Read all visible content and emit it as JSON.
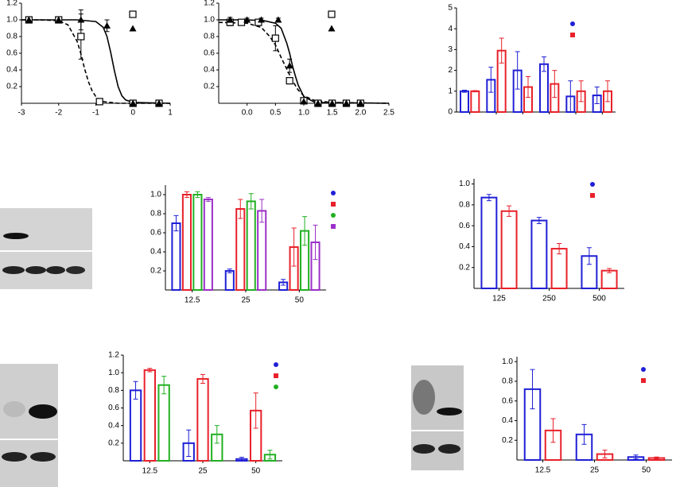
{
  "chart_data": [
    {
      "type": "dose",
      "xlim": [
        -3,
        1
      ],
      "xticks": [
        -3,
        -2,
        -1,
        0,
        1
      ],
      "ylim": [
        0,
        1.2
      ],
      "yticks": [
        0.2,
        0.4,
        0.6,
        0.8,
        {
          "value": 1,
          "label": "1.0"
        },
        1.2
      ],
      "series": [
        {
          "marker": "square",
          "color": "#000000",
          "x": [
            -2.8,
            -2,
            -1.4,
            -0.9,
            0,
            0.7
          ],
          "values": [
            1,
            1,
            0.8,
            0.02,
            0,
            0
          ],
          "errors": [
            0,
            0,
            0.27,
            0,
            0,
            0
          ]
        },
        {
          "marker": "triangle",
          "color": "#000000",
          "x": [
            -2.8,
            -2,
            -1.4,
            -0.7,
            0,
            0.7
          ],
          "values": [
            1,
            1,
            1,
            0.93,
            0,
            0
          ],
          "errors": [
            0,
            0,
            0.12,
            0.07,
            0,
            0
          ]
        }
      ],
      "fits": [
        {
          "dash": true,
          "x": [
            -3,
            -2.5,
            -2,
            -1.75,
            -1.5,
            -1.4,
            -1.3,
            -1.2,
            -1.1,
            -1,
            -0.9,
            -0.8,
            -0.6,
            -0.4,
            0,
            1
          ],
          "values": [
            1,
            1,
            0.99,
            0.94,
            0.74,
            0.59,
            0.41,
            0.26,
            0.15,
            0.08,
            0.04,
            0.02,
            0.01,
            0,
            0,
            0
          ]
        },
        {
          "dash": false,
          "x": [
            -3,
            -1.5,
            -1,
            -0.8,
            -0.7,
            -0.6,
            -0.5,
            -0.4,
            -0.3,
            -0.2,
            0,
            1
          ],
          "values": [
            1,
            1,
            0.98,
            0.91,
            0.8,
            0.61,
            0.39,
            0.2,
            0.09,
            0.04,
            0.01,
            0
          ]
        }
      ]
    },
    {
      "type": "dose",
      "xlim": [
        -0.5,
        2.5
      ],
      "xticks": [
        {
          "value": 0,
          "label": "0.0"
        },
        0.5,
        {
          "value": 1,
          "label": "1.0"
        },
        1.5,
        {
          "value": 2,
          "label": "2.0"
        },
        2.5
      ],
      "ylim": [
        0,
        1.2
      ],
      "yticks": [
        0.2,
        0.4,
        0.6,
        0.8,
        {
          "value": 1,
          "label": "1.0"
        },
        1.2
      ],
      "series": [
        {
          "marker": "square",
          "color": "#000000",
          "x": [
            -0.3,
            -0.1,
            0.2,
            0.5,
            0.75,
            1,
            1.25,
            1.5,
            1.75,
            2
          ],
          "values": [
            0.97,
            0.97,
            0.97,
            0.78,
            0.27,
            0.03,
            0,
            0,
            0,
            0
          ],
          "errors": [
            0.04,
            0.03,
            0.03,
            0.15,
            0.03,
            0,
            0,
            0,
            0,
            0
          ]
        },
        {
          "marker": "triangle",
          "color": "#000000",
          "x": [
            -0.3,
            0,
            0.25,
            0.55,
            0.75,
            1,
            1.25,
            1.5,
            1.75,
            2
          ],
          "values": [
            1,
            1,
            1,
            1,
            0.45,
            0.02,
            0,
            0,
            0,
            0
          ],
          "errors": [
            0.03,
            0.02,
            0.02,
            0.02,
            0.08,
            0,
            0,
            0,
            0,
            0
          ]
        }
      ],
      "fits": [
        {
          "dash": true,
          "x": [
            -0.5,
            0,
            0.25,
            0.4,
            0.5,
            0.6,
            0.7,
            0.8,
            0.9,
            1,
            1.2,
            1.5,
            2.5
          ],
          "values": [
            0.97,
            0.96,
            0.91,
            0.8,
            0.7,
            0.55,
            0.41,
            0.27,
            0.16,
            0.09,
            0.03,
            0.01,
            0
          ]
        },
        {
          "dash": false,
          "x": [
            -0.5,
            0,
            0.3,
            0.5,
            0.6,
            0.7,
            0.75,
            0.8,
            0.85,
            0.9,
            1,
            1.2,
            2.5
          ],
          "values": [
            1,
            1,
            0.99,
            0.96,
            0.9,
            0.72,
            0.6,
            0.45,
            0.33,
            0.22,
            0.08,
            0.01,
            0
          ]
        }
      ]
    },
    {
      "type": "bar",
      "categories": [
        null,
        null,
        null,
        null,
        null,
        null
      ],
      "ylim": [
        0,
        5
      ],
      "yticks": [
        0,
        1,
        2,
        3,
        4,
        5
      ],
      "series": [
        {
          "color": "#1f1fd6",
          "values": [
            1,
            1.55,
            2,
            2.3,
            0.75,
            0.8
          ],
          "errors": [
            0.05,
            0.6,
            0.9,
            0.35,
            0.75,
            0.4
          ]
        },
        {
          "color": "#e8212a",
          "values": [
            1,
            2.95,
            1.2,
            1.35,
            1,
            1
          ],
          "errors": [
            0.03,
            0.6,
            0.5,
            0.65,
            0.5,
            0.5
          ]
        }
      ]
    },
    {
      "type": "bar",
      "categories": [
        "12.5",
        "25",
        "50"
      ],
      "ylim": [
        0,
        1.1
      ],
      "yticks": [
        0.2,
        0.4,
        0.6,
        0.8,
        {
          "value": 1,
          "label": "1.0"
        }
      ],
      "series": [
        {
          "color": "#1f1fd6",
          "values": [
            0.7,
            0.2,
            0.08
          ],
          "errors": [
            0.08,
            0.02,
            0.03
          ]
        },
        {
          "color": "#e8212a",
          "values": [
            1,
            0.85,
            0.45
          ],
          "errors": [
            0.03,
            0.1,
            0.2
          ]
        },
        {
          "color": "#22b022",
          "values": [
            1,
            0.93,
            0.62
          ],
          "errors": [
            0.03,
            0.08,
            0.15
          ]
        },
        {
          "color": "#9b30c8",
          "values": [
            0.95,
            0.83,
            0.5
          ],
          "errors": [
            0.02,
            0.12,
            0.18
          ]
        }
      ]
    },
    {
      "type": "bar",
      "categories": [
        "125",
        "250",
        "500"
      ],
      "ylim": [
        0,
        1.05
      ],
      "yticks": [
        0.2,
        0.4,
        0.6,
        0.8,
        {
          "value": 1,
          "label": "1.0"
        }
      ],
      "series": [
        {
          "color": "#1f1fd6",
          "values": [
            0.87,
            0.65,
            0.31
          ],
          "errors": [
            0.03,
            0.03,
            0.08
          ]
        },
        {
          "color": "#e8212a",
          "values": [
            0.74,
            0.38,
            0.17
          ],
          "errors": [
            0.05,
            0.05,
            0.02
          ]
        }
      ]
    },
    {
      "type": "bar",
      "categories": [
        "12.5",
        "25",
        "50"
      ],
      "ylim": [
        0,
        1.2
      ],
      "yticks": [
        0.2,
        0.4,
        0.6,
        0.8,
        {
          "value": 1,
          "label": "1.0"
        },
        1.2
      ],
      "series": [
        {
          "color": "#1f1fd6",
          "values": [
            0.8,
            0.2,
            0.02
          ],
          "errors": [
            0.1,
            0.15,
            0.02
          ]
        },
        {
          "color": "#e8212a",
          "values": [
            1.03,
            0.93,
            0.57
          ],
          "errors": [
            0.02,
            0.05,
            0.2
          ]
        },
        {
          "color": "#22b022",
          "values": [
            0.86,
            0.3,
            0.07
          ],
          "errors": [
            0.1,
            0.1,
            0.05
          ]
        }
      ]
    },
    {
      "type": "bar",
      "categories": [
        "12.5",
        "25",
        "50"
      ],
      "ylim": [
        0,
        1.05
      ],
      "yticks": [
        0.2,
        0.4,
        0.6,
        0.8,
        {
          "value": 1,
          "label": "1.0"
        }
      ],
      "series": [
        {
          "color": "#1f1fd6",
          "values": [
            0.72,
            0.26,
            0.03
          ],
          "errors": [
            0.2,
            0.1,
            0.02
          ]
        },
        {
          "color": "#e8212a",
          "values": [
            0.3,
            0.06,
            0.02
          ],
          "errors": [
            0.12,
            0.04,
            0.01
          ]
        }
      ]
    }
  ]
}
